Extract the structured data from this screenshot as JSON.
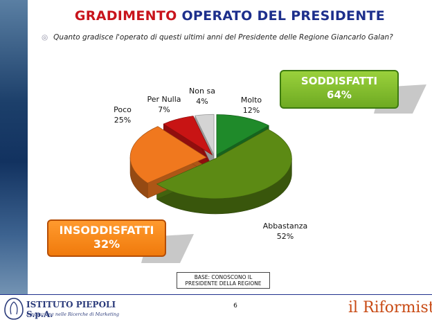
{
  "header": {
    "title_part1": "GRADIMENTO",
    "title_part2": "OPERATO DEL PRESIDENTE",
    "question": "Quanto gradisce l'operato di questi ultimi anni del Presidente delle Regione Giancarlo Galan?"
  },
  "summary_boxes": {
    "satisfied_label": "SODDISFATTI",
    "satisfied_value": "64%",
    "unsatisfied_label": "INSODDISFATTI",
    "unsatisfied_value": "32%"
  },
  "chart_data": {
    "type": "pie",
    "title": "",
    "slices": [
      {
        "name": "Molto",
        "value": 12,
        "label": "12%",
        "color": "#1f8a2a"
      },
      {
        "name": "Abbastanza",
        "value": 52,
        "label": "52%",
        "color": "#5c8a14"
      },
      {
        "name": "Poco",
        "value": 25,
        "label": "25%",
        "color": "#f0781e"
      },
      {
        "name": "Per Nulla",
        "value": 7,
        "label": "7%",
        "color": "#c81414"
      },
      {
        "name": "Non sa",
        "value": 4,
        "label": "4%",
        "color": "#d4d4d4"
      }
    ]
  },
  "base_note": {
    "line1": "BASE: CONOSCONO IL",
    "line2": "PRESIDENTE DELLA REGIONE"
  },
  "footer": {
    "page_number": "6",
    "left_logo_name": "ISTITUTO PIEPOLI S.p.A.",
    "left_logo_tagline": "Innovazione nelle Ricerche di Marketing",
    "right_logo_text": "il Riformista"
  }
}
